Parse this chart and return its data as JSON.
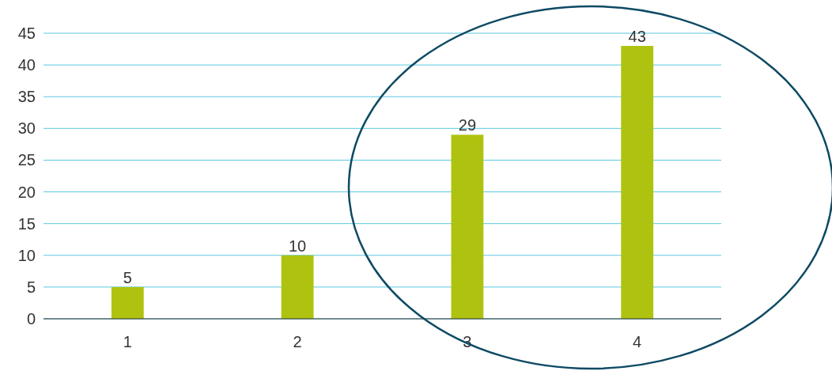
{
  "chart_data": {
    "type": "bar",
    "categories": [
      "1",
      "2",
      "3",
      "4"
    ],
    "values": [
      5,
      10,
      29,
      43
    ],
    "color": "#aec30f",
    "ylim": [
      0,
      45
    ],
    "yticks": [
      0,
      5,
      10,
      15,
      20,
      25,
      30,
      35,
      40,
      45
    ],
    "grid": "y",
    "data_labels": true
  }
}
